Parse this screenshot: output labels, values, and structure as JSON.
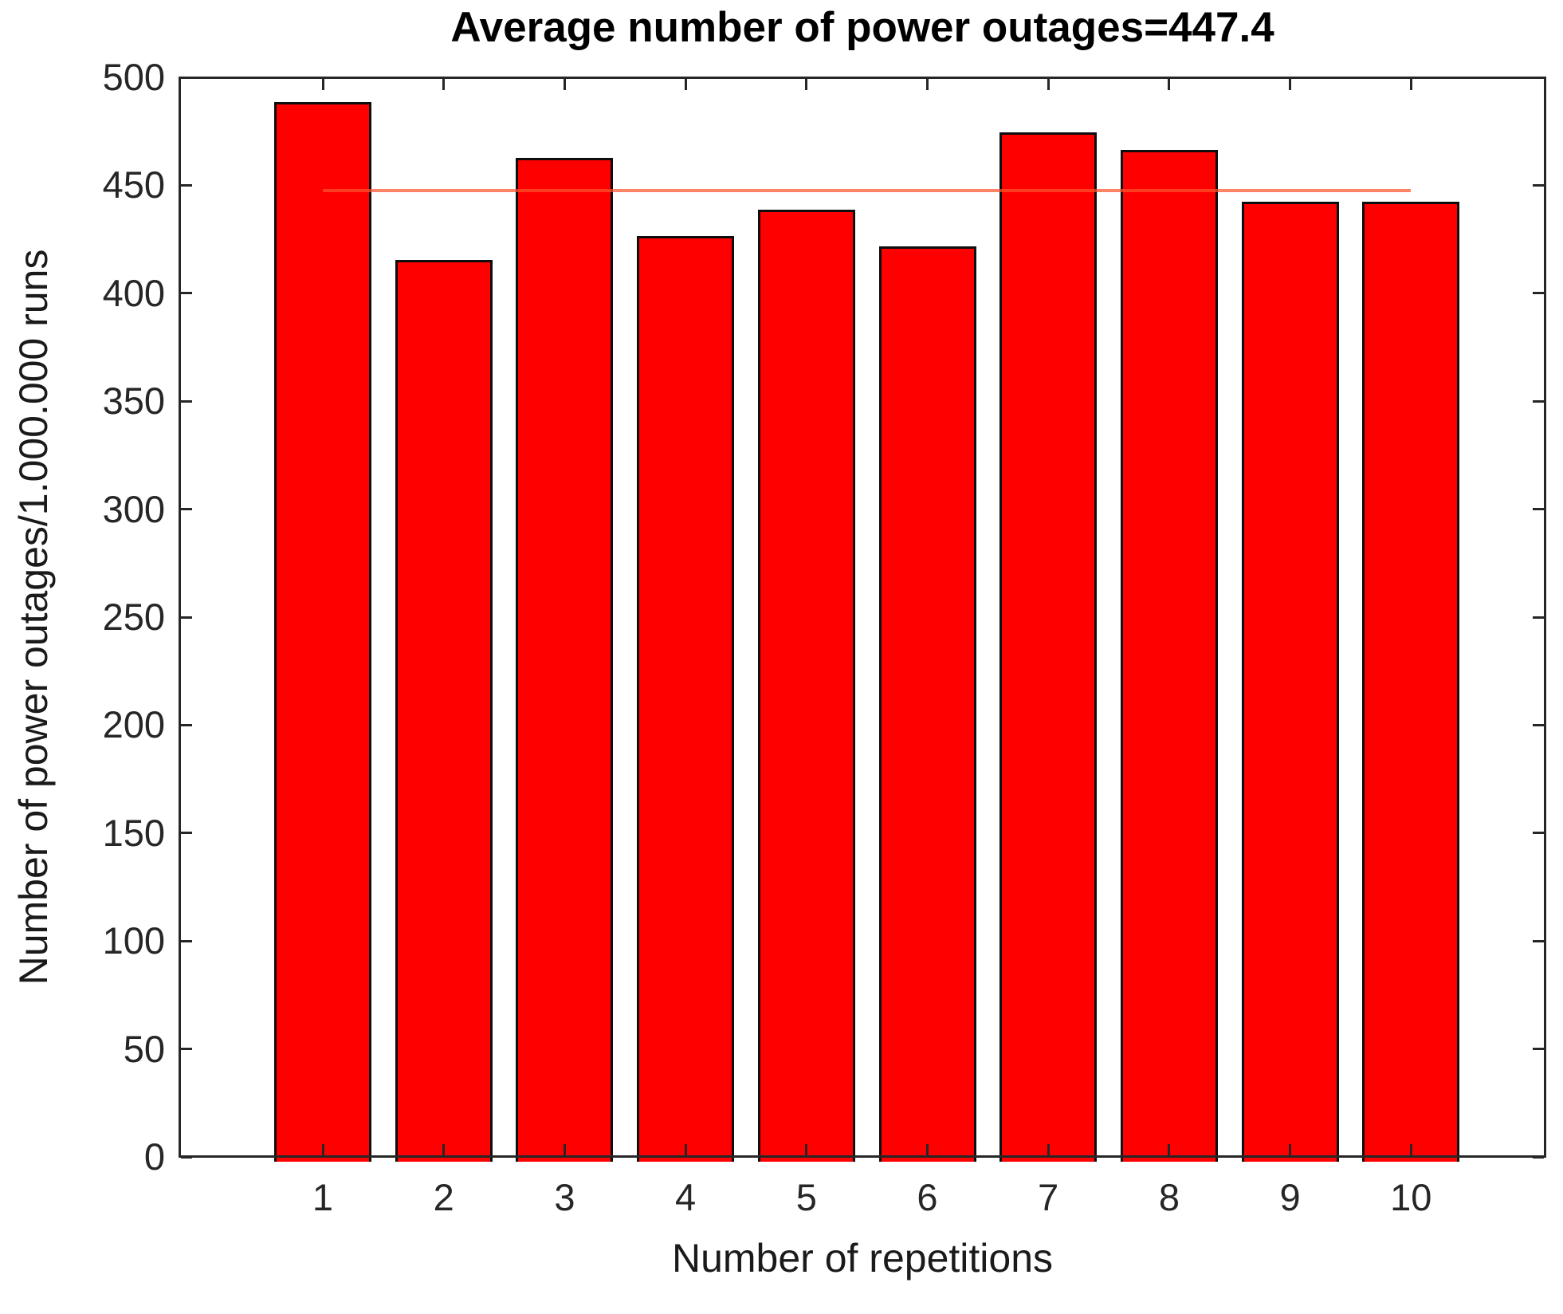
{
  "chart_data": {
    "type": "bar",
    "title": "Average number of power outages=447.4",
    "xlabel": "Number of repetitions",
    "ylabel": "Number of power outages/1.000.000 runs",
    "categories": [
      1,
      2,
      3,
      4,
      5,
      6,
      7,
      8,
      9,
      10
    ],
    "values": [
      488,
      415,
      462,
      426,
      438,
      421,
      474,
      466,
      442,
      442
    ],
    "mean_line": {
      "value": 447.4,
      "x_start": 1,
      "x_end": 10,
      "color": "#ff552d",
      "opacity": 0.72
    },
    "ylim": [
      0,
      500
    ],
    "yticks": [
      0,
      50,
      100,
      150,
      200,
      250,
      300,
      350,
      400,
      450,
      500
    ],
    "bar_color": "#ff0000",
    "bar_edge_color": "#0d0d0d",
    "axis_color": "#262626",
    "tick_label_color": "#262626",
    "grid": false,
    "legend": false
  }
}
